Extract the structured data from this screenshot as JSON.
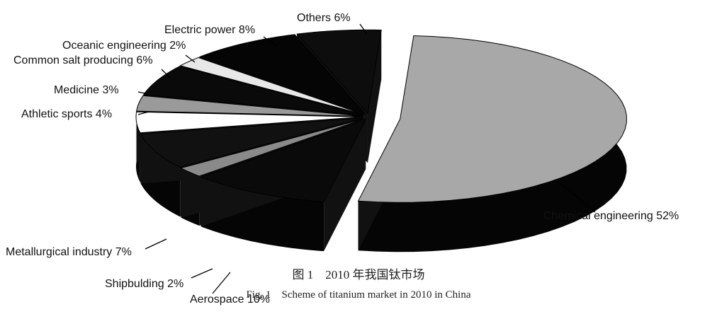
{
  "chart_data": {
    "type": "pie",
    "style": "3d-exploded",
    "slices": [
      {
        "label": "Chemical engineering",
        "value": 52,
        "text": "Chemical engineering 52%",
        "color": "#a8a8a8"
      },
      {
        "label": "Aerospace",
        "value": 10,
        "text": "Aerospace 10%",
        "color": "#0a0a0a"
      },
      {
        "label": "Shipbulding",
        "value": 2,
        "text": "Shipbulding 2%",
        "color": "#8a8a8a"
      },
      {
        "label": "Metallurgical industry",
        "value": 7,
        "text": "Metallurgical industry 7%",
        "color": "#111111"
      },
      {
        "label": "Athletic sports",
        "value": 4,
        "text": "Athletic sports 4%",
        "color": "#ffffff"
      },
      {
        "label": "Medicine",
        "value": 3,
        "text": "Medicine 3%",
        "color": "#9a9a9a"
      },
      {
        "label": "Common salt producing",
        "value": 6,
        "text": "Common salt producing 6%",
        "color": "#0a0a0a"
      },
      {
        "label": "Oceanic engineering",
        "value": 2,
        "text": "Oceanic engineering 2%",
        "color": "#e8e8e8"
      },
      {
        "label": "Electric power",
        "value": 8,
        "text": "Electric power 8%",
        "color": "#050505"
      },
      {
        "label": "Others",
        "value": 6,
        "text": "Others 6%",
        "color": "#0d0d0d"
      }
    ],
    "caption_cn": "图 1　2010 年我国钛市场",
    "caption_en": "Fig. 1　Scheme of titanium market in 2010 in China"
  }
}
